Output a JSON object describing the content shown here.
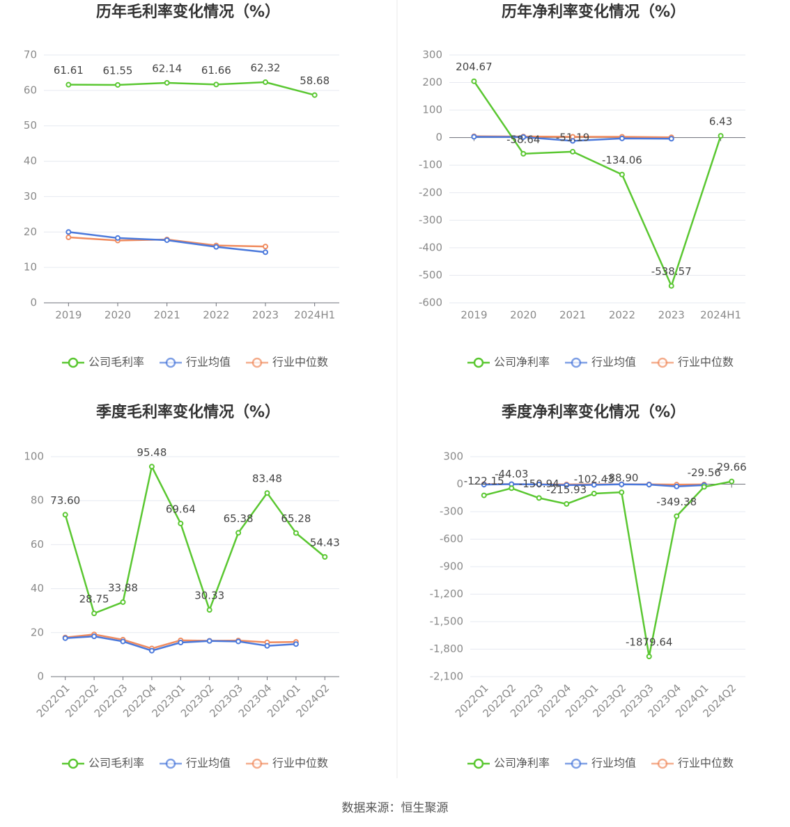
{
  "chart_data": [
    {
      "type": "line",
      "title": "历年毛利率变化情况（%）",
      "categories": [
        "2019",
        "2020",
        "2021",
        "2022",
        "2023",
        "2024H1"
      ],
      "series": [
        {
          "name": "公司毛利率",
          "color": "#5ac731",
          "values": [
            61.61,
            61.55,
            62.14,
            61.66,
            62.32,
            58.68
          ],
          "labels": true
        },
        {
          "name": "行业均值",
          "color": "#4a78db",
          "values": [
            20.0,
            18.3,
            17.7,
            15.8,
            14.3,
            null
          ]
        },
        {
          "name": "行业中位数",
          "color": "#f08b5e",
          "values": [
            18.5,
            17.6,
            17.9,
            16.2,
            15.9,
            null
          ]
        }
      ],
      "ylim": [
        0,
        70
      ],
      "yticks": [
        0,
        10,
        20,
        30,
        40,
        50,
        60,
        70
      ],
      "grid": true,
      "legend": "bottom"
    },
    {
      "type": "line",
      "title": "历年净利率变化情况（%）",
      "categories": [
        "2019",
        "2020",
        "2021",
        "2022",
        "2023",
        "2024H1"
      ],
      "series": [
        {
          "name": "公司净利率",
          "color": "#5ac731",
          "values": [
            204.67,
            -58.64,
            -51.19,
            -134.06,
            -538.57,
            6.43
          ],
          "labels": true
        },
        {
          "name": "行业均值",
          "color": "#4a78db",
          "values": [
            3,
            2,
            -12,
            -3,
            -4,
            null
          ]
        },
        {
          "name": "行业中位数",
          "color": "#f08b5e",
          "values": [
            5,
            4,
            3,
            3,
            1,
            null
          ]
        }
      ],
      "ylim": [
        -600,
        300
      ],
      "yticks": [
        -600,
        -500,
        -400,
        -300,
        -200,
        -100,
        0,
        100,
        200,
        300
      ],
      "grid": true,
      "legend": "bottom"
    },
    {
      "type": "line",
      "title": "季度毛利率变化情况（%）",
      "categories": [
        "2022Q1",
        "2022Q2",
        "2022Q3",
        "2022Q4",
        "2023Q1",
        "2023Q2",
        "2023Q3",
        "2023Q4",
        "2024Q1",
        "2024Q2"
      ],
      "series": [
        {
          "name": "公司毛利率",
          "color": "#5ac731",
          "values": [
            73.6,
            28.75,
            33.88,
            95.48,
            69.64,
            30.33,
            65.38,
            83.48,
            65.28,
            54.43
          ],
          "value_labels": [
            "73.60",
            "28.75",
            "33.88",
            "95.48",
            "69.64",
            "30.33",
            "65.38",
            "83.48",
            "65.28",
            "54.43"
          ],
          "labels": true
        },
        {
          "name": "行业均值",
          "color": "#4a78db",
          "values": [
            17.5,
            18.3,
            16.0,
            11.8,
            15.5,
            16.2,
            16.0,
            14.0,
            14.8,
            null
          ]
        },
        {
          "name": "行业中位数",
          "color": "#f08b5e",
          "values": [
            17.8,
            19.2,
            16.8,
            12.8,
            16.5,
            16.3,
            16.4,
            15.6,
            15.8,
            null
          ]
        }
      ],
      "ylim": [
        0,
        100
      ],
      "yticks": [
        0,
        20,
        40,
        60,
        80,
        100
      ],
      "grid": true,
      "legend": "bottom"
    },
    {
      "type": "line",
      "title": "季度净利率变化情况（%）",
      "categories": [
        "2022Q1",
        "2022Q2",
        "2022Q3",
        "2022Q4",
        "2023Q1",
        "2023Q2",
        "2023Q3",
        "2023Q4",
        "2024Q1",
        "2024Q2"
      ],
      "series": [
        {
          "name": "公司净利率",
          "color": "#5ac731",
          "values": [
            -122.15,
            -44.03,
            -150.94,
            -215.93,
            -102.43,
            -88.9,
            -1879.64,
            -349.38,
            -29.56,
            29.66
          ],
          "value_labels": [
            "-122.15",
            "-44.03",
            "-150.94",
            "-215.93",
            "-102.43",
            "-88.90",
            "-1879.64",
            "-349.38",
            "-29.56",
            "29.66"
          ],
          "labels": true
        },
        {
          "name": "行业均值",
          "color": "#4a78db",
          "values": [
            -5,
            0,
            -3,
            -10,
            -8,
            -2,
            -5,
            -25,
            -10,
            null
          ]
        },
        {
          "name": "行业中位数",
          "color": "#f08b5e",
          "values": [
            0,
            0,
            -2,
            -3,
            -2,
            -1,
            -2,
            -5,
            -3,
            null
          ]
        }
      ],
      "ylim": [
        -2100,
        300
      ],
      "yticks": [
        {
          "value": -2100,
          "label": "-2,100"
        },
        {
          "value": -1800,
          "label": "-1,800"
        },
        {
          "value": -1500,
          "label": "-1,500"
        },
        {
          "value": -1200,
          "label": "-1,200"
        },
        -900,
        -600,
        -300,
        0,
        300
      ],
      "grid": true,
      "legend": "bottom"
    }
  ],
  "source": "数据来源：恒生聚源"
}
